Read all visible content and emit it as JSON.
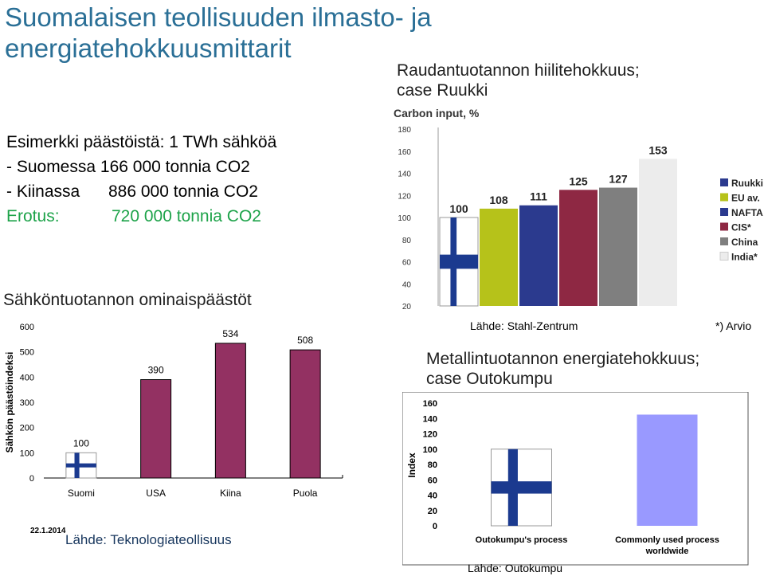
{
  "slide": {
    "title_line1": "Suomalaisen teollisuuden ilmasto- ja",
    "title_line2": "energiatehokkuusmittarit",
    "example_heading": "Esimerkki päästöistä: 1 TWh sähköä",
    "line_finland_label": "- Suomessa",
    "line_finland_value": "166 000 tonnia CO2",
    "line_china_label": "- Kiinassa",
    "line_china_value": "886 000 tonnia CO2",
    "line_diff_label": "Erotus:",
    "line_diff_value": "720 000 tonnia CO2",
    "date": "22.1.2014",
    "colors": {
      "title": "#2a6f96",
      "green": "#1ea34a",
      "finland_blue": "#1b3a8f"
    }
  },
  "steel": {
    "heading_line1": "Raudantuotannon hiilitehokkuus;",
    "heading_line2": "case Ruukki",
    "source": "Lähde: Stahl-Zentrum",
    "note": "*) Arvio"
  },
  "electricity": {
    "heading": "Sähköntuotannon ominaispäästöt",
    "source": "Lähde: Teknologiateollisuus"
  },
  "metal": {
    "heading_line1": "Metallintuotannon energiatehokkuus;",
    "heading_line2": "case Outokumpu",
    "source": "Lähde: Outokumpu"
  },
  "chart_data": [
    {
      "type": "bar",
      "title": "Carbon input, %",
      "categories": [
        "Ruukki",
        "EU av.",
        "NAFTA",
        "CIS*",
        "China",
        "India*"
      ],
      "values": [
        100,
        108,
        111,
        125,
        127,
        153
      ],
      "colors": [
        "#ffffff",
        "#b6c21a",
        "#2b3a8e",
        "#8e2843",
        "#7f7f7f",
        "#ececec"
      ],
      "yticks": [
        20,
        40,
        60,
        80,
        100,
        120,
        140,
        160,
        180
      ],
      "ylim": [
        20,
        180
      ],
      "legend_position": "right"
    },
    {
      "type": "bar",
      "ylabel": "Sähkön päästöindeksi",
      "categories": [
        "Suomi",
        "USA",
        "Kiina",
        "Puola"
      ],
      "values": [
        100,
        390,
        534,
        508
      ],
      "colors": [
        "#ffffff",
        "#933162",
        "#933162",
        "#933162"
      ],
      "yticks": [
        0,
        100,
        200,
        300,
        400,
        500,
        600
      ],
      "ylim": [
        0,
        600
      ]
    },
    {
      "type": "bar",
      "ylabel": "Index",
      "categories": [
        "Outokumpu's process",
        "Commonly used process worldwide"
      ],
      "values": [
        100,
        145
      ],
      "colors": [
        "#ffffff",
        "#9999ff"
      ],
      "yticks": [
        0,
        20,
        40,
        60,
        80,
        100,
        120,
        140,
        160
      ],
      "ylim": [
        0,
        160
      ]
    }
  ]
}
